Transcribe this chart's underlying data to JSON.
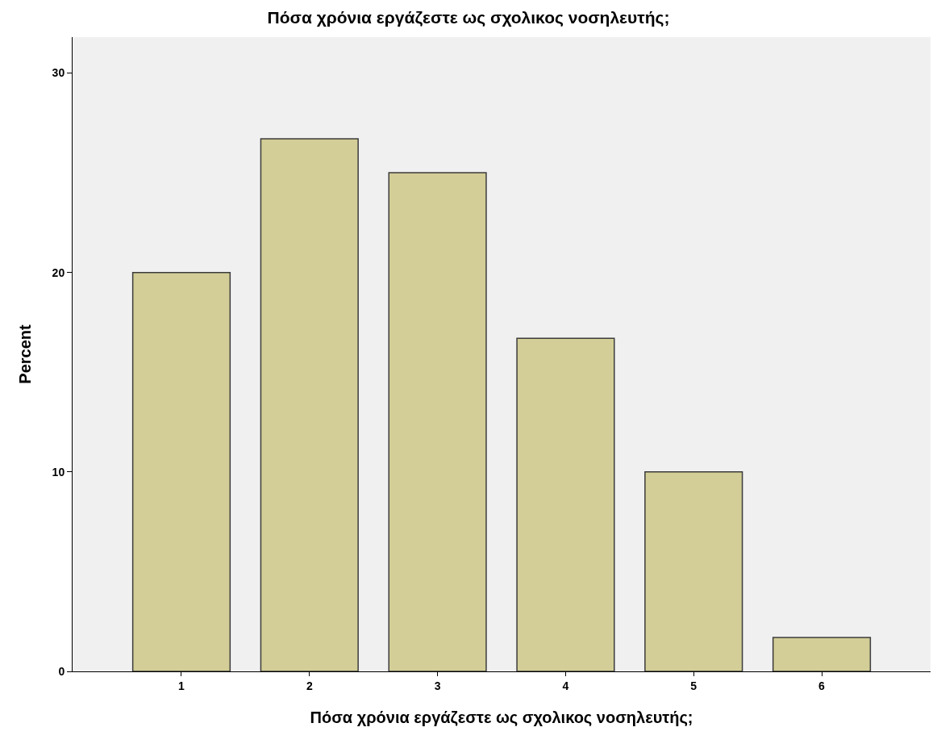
{
  "chart_data": {
    "type": "bar",
    "title": "Πόσα χρόνια εργάζεστε ως σχολικος νοσηλευτής;",
    "xlabel": "Πόσα χρόνια εργάζεστε ως σχολικος νοσηλευτής;",
    "ylabel": "Percent",
    "categories": [
      "1",
      "2",
      "3",
      "4",
      "5",
      "6"
    ],
    "values": [
      20,
      26.7,
      25,
      16.7,
      10,
      1.7
    ],
    "color": "#d3ce97",
    "ylim": [
      0,
      31.8
    ],
    "yticks": [
      0,
      10,
      20,
      30
    ],
    "grid": false
  }
}
